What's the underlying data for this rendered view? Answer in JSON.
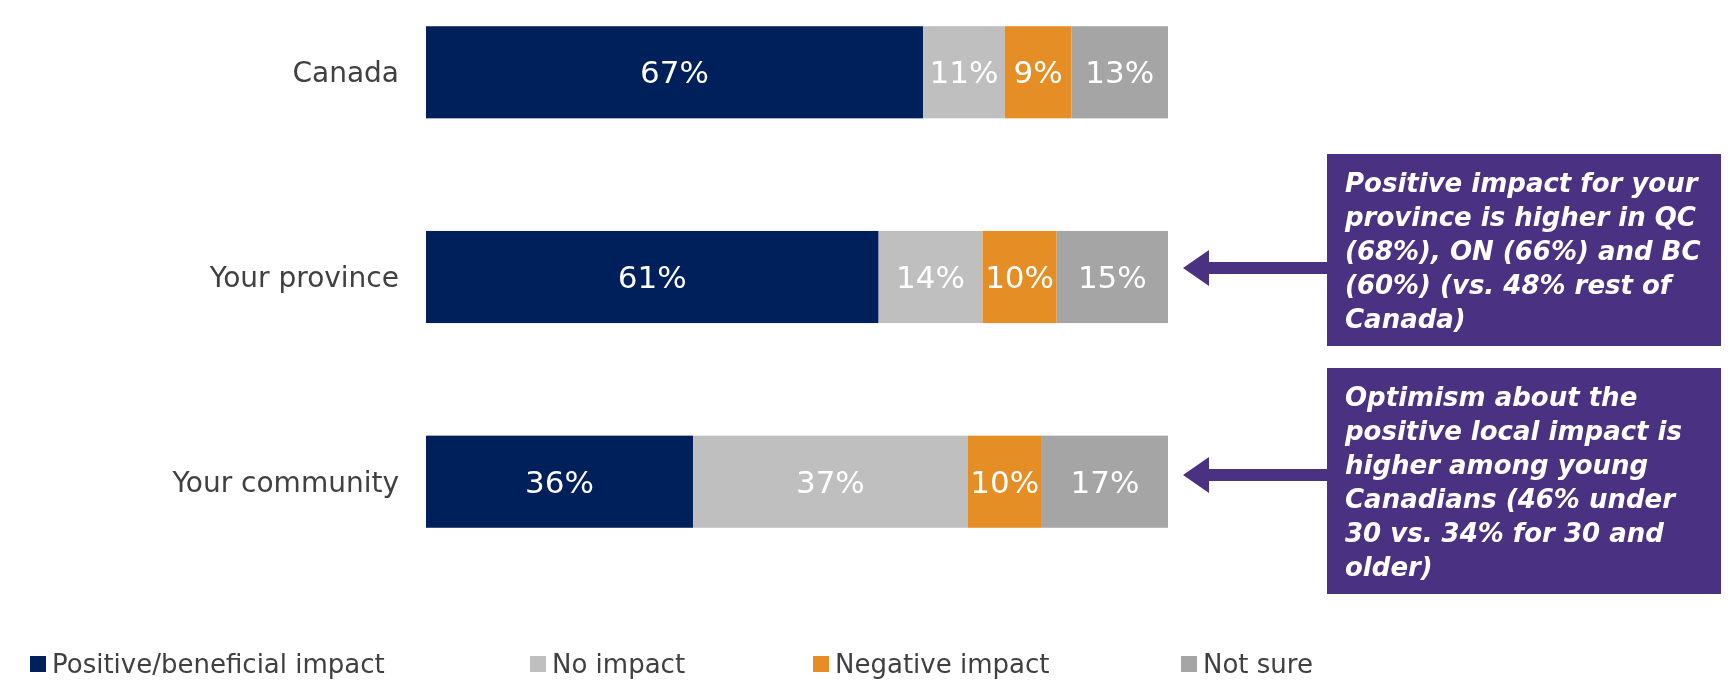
{
  "chart_data": {
    "type": "bar",
    "orientation": "horizontal",
    "stacked": true,
    "categories": [
      "Canada",
      "Your province",
      "Your community"
    ],
    "xlim": [
      0,
      100
    ],
    "tick_labels": "y",
    "series": [
      {
        "name": "Positive/beneficial impact",
        "color": "#00205b",
        "values": [
          67,
          61,
          36
        ],
        "value_labels": [
          "67%",
          "61%",
          "36%"
        ]
      },
      {
        "name": "No impact",
        "color": "#bfbfbf",
        "values": [
          11,
          14,
          37
        ],
        "value_labels": [
          "11%",
          "14%",
          "37%"
        ]
      },
      {
        "name": "Negative impact",
        "color": "#e58e26",
        "values": [
          9,
          10,
          10
        ],
        "value_labels": [
          "9%",
          "10%",
          "10%"
        ]
      },
      {
        "name": "Not sure",
        "color": "#a5a5a5",
        "values": [
          13,
          15,
          17
        ],
        "value_labels": [
          "13%",
          "15%",
          "17%"
        ]
      }
    ],
    "legend": "bottom",
    "annotations": [
      "Positive impact for your province is higher in QC (68%), ON (66%) and BC (60%) (vs. 48% rest of Canada)",
      "Optimism about the positive local impact is higher among young Canadians (46% under 30 vs. 34% for 30 and older)"
    ]
  }
}
